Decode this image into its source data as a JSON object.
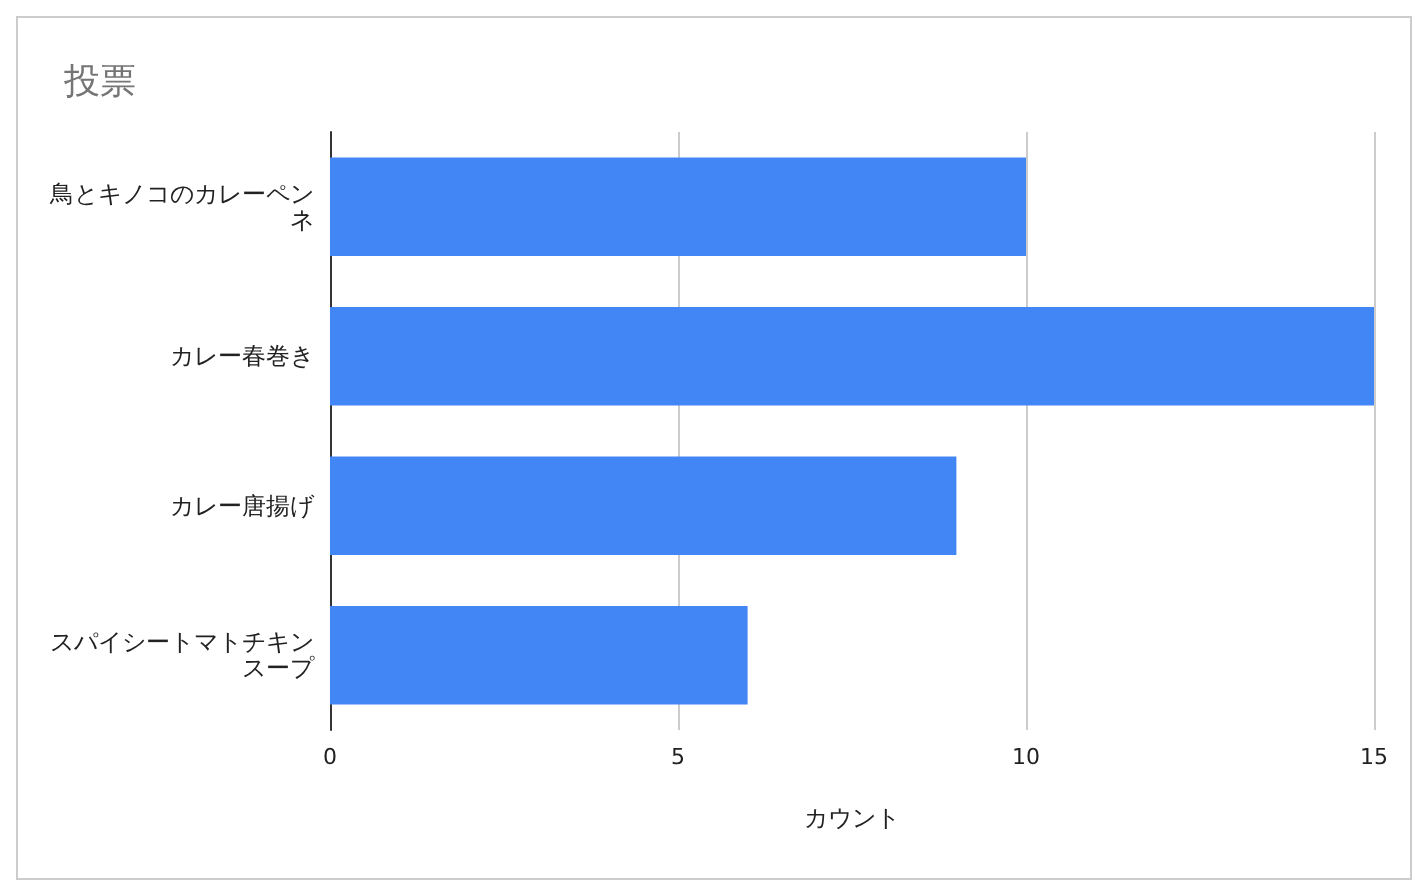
{
  "chart_data": {
    "type": "bar",
    "orientation": "horizontal",
    "title": "投票",
    "xlabel": "カウント",
    "categories": [
      "鳥とキノコのカレーペンネ",
      "カレー春巻き",
      "カレー唐揚げ",
      "スパイシートマトチキンスープ"
    ],
    "values": [
      10,
      15,
      9,
      6
    ],
    "color": "#4285f4",
    "xlim": [
      0,
      15
    ],
    "xticks": [
      0,
      5,
      10,
      15
    ],
    "grid": "x"
  }
}
